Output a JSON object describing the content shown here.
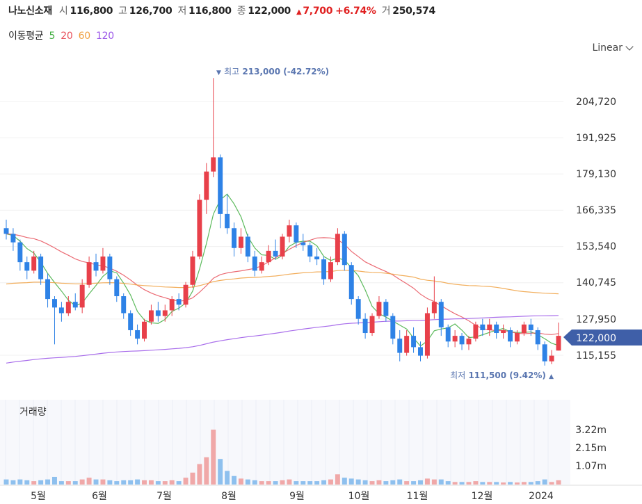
{
  "header": {
    "name": "나노신소재",
    "open_label": "시",
    "open": "116,800",
    "high_label": "고",
    "high": "126,700",
    "low_label": "저",
    "low": "116,800",
    "close_label": "종",
    "close": "122,000",
    "change_arrow": "▲",
    "change": "7,700",
    "change_pct": "+6.74%",
    "volume_label": "거",
    "volume": "250,574"
  },
  "ma_legend": {
    "title": "이동평균",
    "items": [
      {
        "label": "5",
        "color": "#3fae3f"
      },
      {
        "label": "20",
        "color": "#e8505b"
      },
      {
        "label": "60",
        "color": "#f0a040"
      },
      {
        "label": "120",
        "color": "#9a55e8"
      }
    ]
  },
  "scale_selector": {
    "label": "Linear"
  },
  "price_axis": {
    "ticks": [
      "204,720",
      "191,925",
      "179,130",
      "166,335",
      "153,540",
      "140,745",
      "127,950",
      "115,155"
    ],
    "current_price_tag": "122,000"
  },
  "annotations": {
    "high": {
      "arrow": "▼",
      "label": "최고",
      "value": "213,000 (-42.72%)"
    },
    "low": {
      "arrow": "▲",
      "label": "최저",
      "value": "111,500 (9.42%)"
    }
  },
  "volume_panel": {
    "title": "거래량",
    "ticks": [
      "3.22m",
      "2.15m",
      "1.07m"
    ]
  },
  "x_axis": {
    "labels": [
      "5월",
      "6월",
      "7월",
      "8월",
      "9월",
      "10월",
      "11월",
      "12월",
      "2024"
    ]
  },
  "colors": {
    "up": "#e8404a",
    "down": "#2e82e6",
    "vol_up": "#f0a8a8",
    "vol_down": "#8ec0ee",
    "tag": "#3f5fa8"
  },
  "chart_data": {
    "type": "candlestick",
    "title": "나노신소재",
    "y_range": [
      108000,
      218000
    ],
    "volume_range": [
      0,
      3.5
    ],
    "volume_unit": "m",
    "moving_averages": [
      "5",
      "20",
      "60",
      "120"
    ],
    "months": [
      {
        "label": "5월",
        "points": [
          [
            160000,
            163000,
            156000,
            158000,
            0.3
          ],
          [
            158000,
            160000,
            152000,
            155000,
            0.25
          ],
          [
            155000,
            156000,
            145000,
            148000,
            0.3
          ],
          [
            148000,
            150000,
            142000,
            145000,
            0.25
          ],
          [
            145000,
            152000,
            144000,
            150000,
            0.2
          ],
          [
            150000,
            151000,
            140000,
            142000,
            0.25
          ],
          [
            142000,
            144000,
            132000,
            135000,
            0.3
          ],
          [
            135000,
            136000,
            119000,
            132000,
            0.45
          ],
          [
            132000,
            134000,
            127000,
            130000,
            0.2
          ],
          [
            130000,
            136000,
            129000,
            134000,
            0.2
          ]
        ]
      },
      {
        "label": "6월",
        "points": [
          [
            134000,
            137000,
            131000,
            132000,
            0.2
          ],
          [
            132000,
            142000,
            130000,
            140000,
            0.3
          ],
          [
            140000,
            150000,
            139000,
            148000,
            0.4
          ],
          [
            148000,
            151000,
            143000,
            145000,
            0.3
          ],
          [
            145000,
            153000,
            144000,
            150000,
            0.3
          ],
          [
            150000,
            151000,
            140000,
            142000,
            0.25
          ],
          [
            142000,
            143000,
            134000,
            136000,
            0.2
          ],
          [
            136000,
            137000,
            128000,
            130000,
            0.25
          ],
          [
            130000,
            131000,
            122000,
            124000,
            0.25
          ],
          [
            124000,
            126000,
            119000,
            121000,
            0.3
          ]
        ]
      },
      {
        "label": "7월",
        "points": [
          [
            121000,
            128000,
            120000,
            127000,
            0.25
          ],
          [
            127000,
            133000,
            126000,
            131000,
            0.25
          ],
          [
            131000,
            134000,
            127000,
            129000,
            0.2
          ],
          [
            129000,
            133000,
            127000,
            131000,
            0.2
          ],
          [
            131000,
            136000,
            129000,
            135000,
            0.25
          ],
          [
            135000,
            137000,
            131000,
            133000,
            0.2
          ],
          [
            133000,
            141000,
            132000,
            140000,
            0.4
          ],
          [
            140000,
            152000,
            139000,
            150000,
            0.7
          ],
          [
            150000,
            172000,
            149000,
            170000,
            1.2
          ],
          [
            170000,
            183000,
            165000,
            180000,
            1.6
          ]
        ]
      },
      {
        "label": "8월",
        "points": [
          [
            180000,
            213000,
            178000,
            185000,
            3.22
          ],
          [
            185000,
            186000,
            160000,
            165000,
            1.5
          ],
          [
            165000,
            172000,
            158000,
            160000,
            0.8
          ],
          [
            160000,
            162000,
            150000,
            153000,
            0.5
          ],
          [
            153000,
            160000,
            151000,
            157000,
            0.35
          ],
          [
            157000,
            158000,
            148000,
            150000,
            0.3
          ],
          [
            150000,
            152000,
            143000,
            145000,
            0.25
          ],
          [
            145000,
            150000,
            144000,
            148000,
            0.2
          ],
          [
            148000,
            154000,
            147000,
            152000,
            0.2
          ],
          [
            152000,
            156000,
            149000,
            150000,
            0.2
          ]
        ]
      },
      {
        "label": "9월",
        "points": [
          [
            150000,
            158000,
            149000,
            157000,
            0.25
          ],
          [
            157000,
            163000,
            155000,
            161000,
            0.3
          ],
          [
            161000,
            162000,
            153000,
            155000,
            0.2
          ],
          [
            155000,
            158000,
            152000,
            154000,
            0.2
          ],
          [
            154000,
            155000,
            148000,
            150000,
            0.2
          ],
          [
            150000,
            153000,
            147000,
            149000,
            0.2
          ],
          [
            149000,
            150000,
            140000,
            142000,
            0.25
          ],
          [
            142000,
            150000,
            141000,
            148000,
            0.3
          ],
          [
            148000,
            160000,
            147000,
            158000,
            0.6
          ],
          [
            158000,
            159000,
            145000,
            147000,
            0.4
          ]
        ]
      },
      {
        "label": "10월",
        "points": [
          [
            147000,
            148000,
            133000,
            135000,
            0.35
          ],
          [
            135000,
            136000,
            126000,
            128000,
            0.3
          ],
          [
            128000,
            130000,
            121000,
            123000,
            0.25
          ],
          [
            123000,
            130000,
            122000,
            129000,
            0.2
          ],
          [
            129000,
            136000,
            128000,
            134000,
            0.25
          ],
          [
            134000,
            135000,
            127000,
            129000,
            0.2
          ],
          [
            129000,
            130000,
            119000,
            121000,
            0.25
          ],
          [
            121000,
            124000,
            113000,
            116000,
            0.3
          ],
          [
            116000,
            124000,
            115000,
            122000,
            0.2
          ],
          [
            122000,
            125000,
            116000,
            118000,
            0.2
          ]
        ]
      },
      {
        "label": "11월",
        "points": [
          [
            118000,
            120000,
            113000,
            115000,
            0.25
          ],
          [
            115000,
            132000,
            114000,
            130000,
            0.35
          ],
          [
            130000,
            143000,
            128000,
            134000,
            0.3
          ],
          [
            134000,
            135000,
            122000,
            125000,
            0.3
          ],
          [
            125000,
            126000,
            118000,
            120000,
            0.2
          ],
          [
            120000,
            124000,
            118000,
            122000,
            0.15
          ],
          [
            122000,
            123000,
            117000,
            119000,
            0.15
          ],
          [
            119000,
            122000,
            117000,
            121000,
            0.15
          ],
          [
            121000,
            127000,
            120000,
            126000,
            0.2
          ],
          [
            126000,
            128000,
            122000,
            124000,
            0.15
          ]
        ]
      },
      {
        "label": "12월",
        "points": [
          [
            124000,
            128000,
            122000,
            126000,
            0.15
          ],
          [
            126000,
            127000,
            121000,
            123000,
            0.15
          ],
          [
            123000,
            126000,
            121000,
            124000,
            0.12
          ],
          [
            124000,
            125000,
            118000,
            120000,
            0.15
          ],
          [
            120000,
            124000,
            119000,
            123000,
            0.12
          ],
          [
            123000,
            127000,
            122000,
            126000,
            0.15
          ],
          [
            126000,
            128000,
            122000,
            124000,
            0.15
          ],
          [
            124000,
            125000,
            117000,
            119000,
            0.2
          ],
          [
            119000,
            120000,
            111500,
            113000,
            0.3
          ],
          [
            113000,
            117000,
            112000,
            115000,
            0.15
          ]
        ]
      },
      {
        "label": "2024",
        "points": [
          [
            116800,
            126700,
            116800,
            122000,
            0.25
          ]
        ]
      }
    ]
  }
}
